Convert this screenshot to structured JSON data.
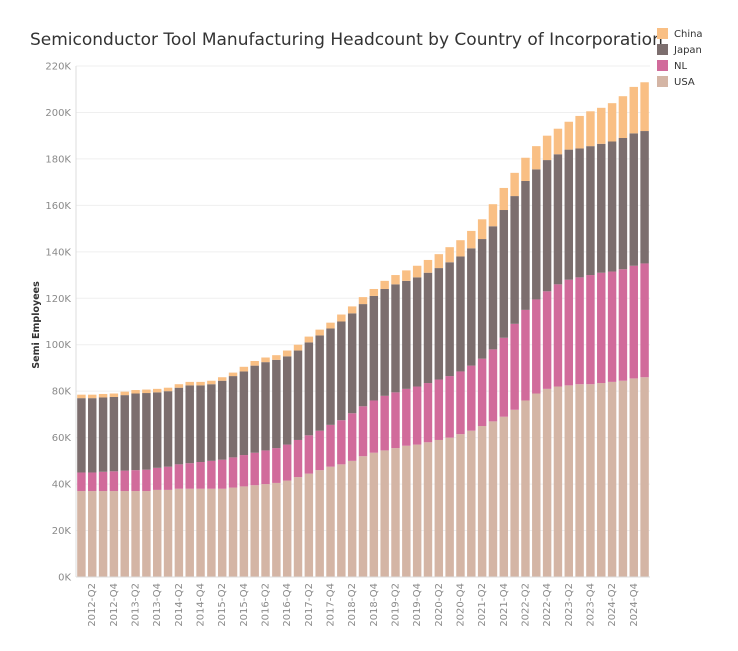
{
  "chart_data": {
    "type": "bar",
    "stacked": true,
    "title": "Semiconductor Tool Manufacturing Headcount by Country of Incorporation",
    "xlabel": "",
    "ylabel": "Semi Employees",
    "ylim": [
      0,
      220000
    ],
    "y_ticks": [
      0,
      20000,
      40000,
      60000,
      80000,
      100000,
      120000,
      140000,
      160000,
      180000,
      200000,
      220000
    ],
    "y_tick_labels": [
      "0K",
      "20K",
      "40K",
      "60K",
      "80K",
      "100K",
      "120K",
      "140K",
      "160K",
      "180K",
      "200K",
      "220K"
    ],
    "grid": true,
    "legend_position": "top-right",
    "categories": [
      "2012-Q1",
      "2012-Q2",
      "2012-Q3",
      "2012-Q4",
      "2013-Q1",
      "2013-Q2",
      "2013-Q3",
      "2013-Q4",
      "2014-Q1",
      "2014-Q2",
      "2014-Q3",
      "2014-Q4",
      "2015-Q1",
      "2015-Q2",
      "2015-Q3",
      "2015-Q4",
      "2016-Q1",
      "2016-Q2",
      "2016-Q3",
      "2016-Q4",
      "2017-Q1",
      "2017-Q2",
      "2017-Q3",
      "2017-Q4",
      "2018-Q1",
      "2018-Q2",
      "2018-Q3",
      "2018-Q4",
      "2019-Q1",
      "2019-Q2",
      "2019-Q3",
      "2019-Q4",
      "2020-Q1",
      "2020-Q2",
      "2020-Q3",
      "2020-Q4",
      "2021-Q1",
      "2021-Q2",
      "2021-Q3",
      "2021-Q4",
      "2022-Q1",
      "2022-Q2",
      "2022-Q3",
      "2022-Q4",
      "2023-Q1",
      "2023-Q2",
      "2023-Q3",
      "2023-Q4",
      "2024-Q1",
      "2024-Q2",
      "2024-Q3",
      "2024-Q4",
      "2025-Q1"
    ],
    "x_tick_labels": [
      "2012-Q2",
      "2012-Q4",
      "2013-Q2",
      "2013-Q4",
      "2014-Q2",
      "2014-Q4",
      "2015-Q2",
      "2015-Q4",
      "2016-Q2",
      "2016-Q4",
      "2017-Q2",
      "2017-Q4",
      "2018-Q2",
      "2018-Q4",
      "2019-Q2",
      "2019-Q4",
      "2020-Q2",
      "2020-Q4",
      "2021-Q2",
      "2021-Q4",
      "2022-Q2",
      "2022-Q4",
      "2023-Q2",
      "2023-Q4",
      "2024-Q2",
      "2024-Q4"
    ],
    "series": [
      {
        "name": "USA",
        "color": "#d4b5a5",
        "values": [
          37000,
          37000,
          37000,
          37000,
          37000,
          37000,
          37000,
          37500,
          37500,
          38000,
          38000,
          38000,
          38000,
          38000,
          38500,
          39000,
          39500,
          40000,
          40500,
          41500,
          43000,
          44500,
          46000,
          47500,
          48500,
          50000,
          52000,
          53500,
          54500,
          55500,
          56500,
          57000,
          58000,
          59000,
          60000,
          61500,
          63000,
          65000,
          67000,
          69000,
          72000,
          76000,
          79000,
          81000,
          82000,
          82500,
          83000,
          83000,
          83500,
          84000,
          84500,
          85500,
          86000
        ]
      },
      {
        "name": "NL",
        "color": "#d16b9b",
        "values": [
          8000,
          8000,
          8300,
          8500,
          8800,
          9000,
          9200,
          9500,
          10000,
          10500,
          11000,
          11500,
          12000,
          12500,
          13000,
          13500,
          14000,
          14500,
          15000,
          15500,
          16000,
          16500,
          17000,
          18000,
          19000,
          20500,
          21500,
          22500,
          23500,
          24000,
          24500,
          25000,
          25500,
          26000,
          26500,
          27000,
          28000,
          29000,
          31000,
          34000,
          37000,
          39000,
          40500,
          42000,
          44000,
          45500,
          46000,
          47000,
          47500,
          47500,
          48000,
          48500,
          49000
        ]
      },
      {
        "name": "Japan",
        "color": "#7c6e6e",
        "values": [
          32000,
          32000,
          32000,
          32000,
          32500,
          33000,
          33000,
          32500,
          32500,
          33000,
          33500,
          33000,
          33000,
          34000,
          35000,
          36000,
          37500,
          38000,
          38000,
          38000,
          38500,
          40000,
          41000,
          41500,
          42500,
          43000,
          44000,
          45000,
          46000,
          46500,
          46500,
          47000,
          47500,
          48000,
          49000,
          49500,
          50500,
          51500,
          53000,
          55000,
          55000,
          55500,
          56000,
          56500,
          56000,
          56000,
          55500,
          55500,
          55500,
          56000,
          56500,
          57000,
          57000
        ]
      },
      {
        "name": "China",
        "color": "#f9bf84",
        "values": [
          1500,
          1500,
          1500,
          1500,
          1500,
          1500,
          1500,
          1500,
          1500,
          1500,
          1500,
          1500,
          1500,
          1500,
          1500,
          2000,
          2000,
          2000,
          2000,
          2500,
          2500,
          2500,
          2500,
          2500,
          3000,
          3000,
          3000,
          3000,
          3500,
          4000,
          4500,
          5000,
          5500,
          6000,
          6500,
          7000,
          7500,
          8500,
          9500,
          9500,
          10000,
          10000,
          10000,
          10500,
          11000,
          12000,
          14000,
          15000,
          15500,
          16500,
          18000,
          20000,
          21000
        ]
      }
    ]
  }
}
